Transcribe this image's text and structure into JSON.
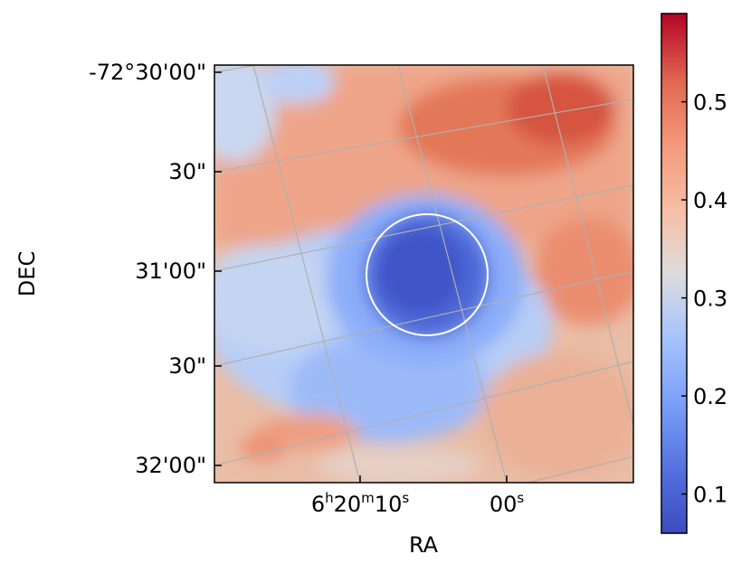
{
  "chart_data": {
    "type": "heatmap",
    "title": "",
    "xlabel": "RA",
    "ylabel": "DEC",
    "x_ticks": [
      {
        "h": "6",
        "m": "20",
        "s": "10"
      },
      {
        "s": "00"
      }
    ],
    "y_ticks": [
      "-72°30'00\"",
      "30\"",
      "31'00\"",
      "30\"",
      "32'00\""
    ],
    "colorbar": {
      "colormap": "coolwarm",
      "range": [
        0.06,
        0.59
      ],
      "ticks": [
        0.1,
        0.2,
        0.3,
        0.4,
        0.5
      ],
      "tick_labels": [
        "0.1",
        "0.2",
        "0.3",
        "0.4",
        "0.5"
      ]
    },
    "colors": {
      "grid": "#b0b0b0",
      "aperture": "#ffffff",
      "cmap_low": "#3b4cc0",
      "cmap_mid": "#dddddd",
      "cmap_high": "#b40426"
    },
    "grid": true,
    "legend": "none",
    "features": {
      "aperture_circle": "white circle around the central low-value region",
      "center_value": 0.12,
      "background_value": 0.33
    }
  }
}
